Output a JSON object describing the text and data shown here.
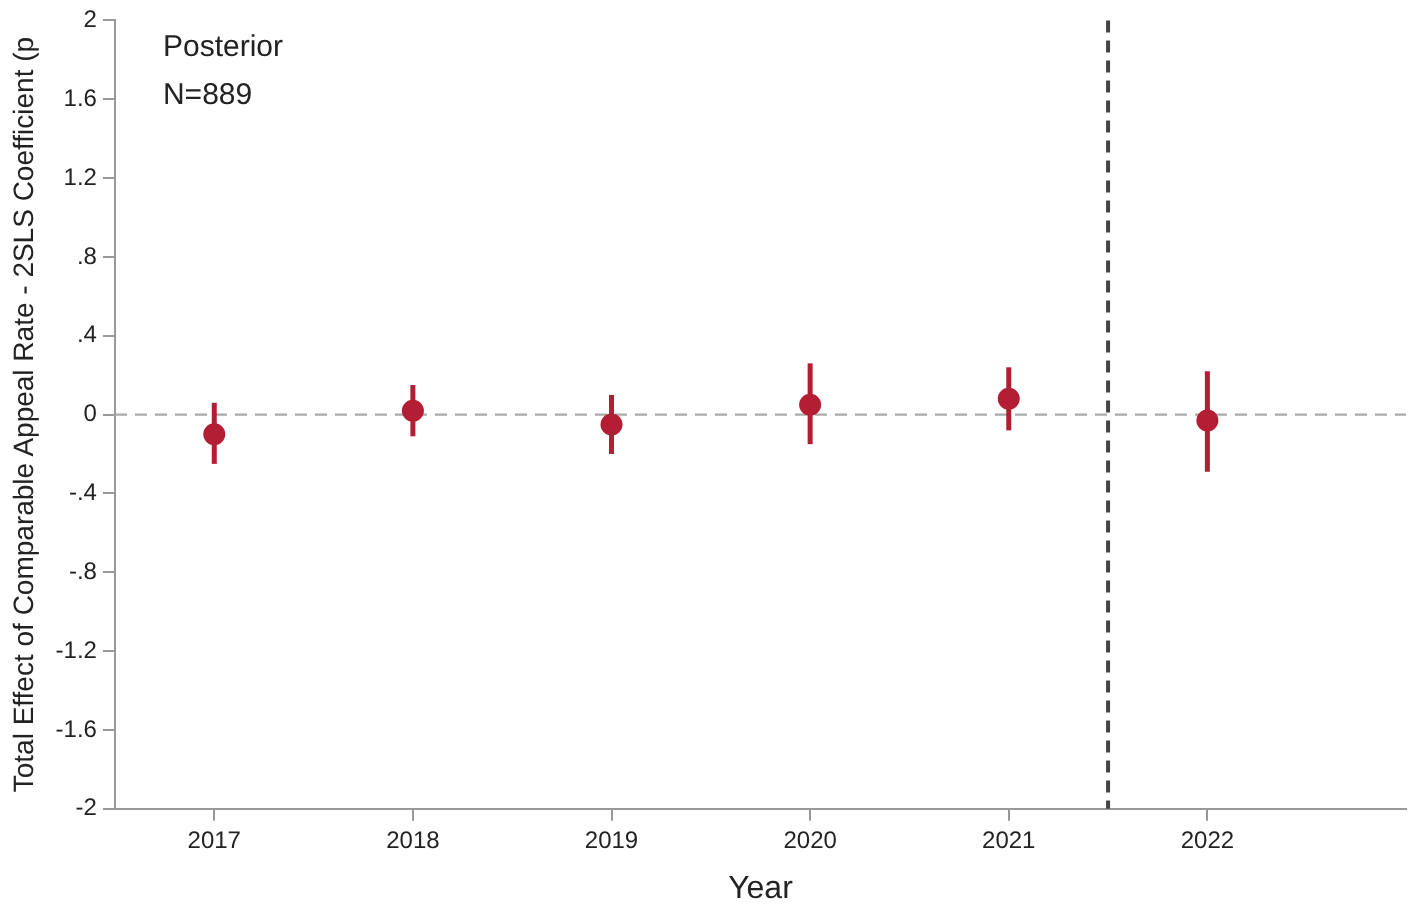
{
  "chart_data": {
    "type": "scatter",
    "xlabel": "Year",
    "ylabel": "Total Effect of Comparable Appeal Rate - 2SLS Coefficient (p",
    "x": [
      2017,
      2018,
      2019,
      2020,
      2021,
      2022
    ],
    "series": [
      {
        "color": "#b41e34",
        "values": [
          -0.1,
          0.02,
          -0.05,
          0.05,
          0.08,
          -0.03
        ],
        "errors": [
          [
            -0.25,
            0.06
          ],
          [
            -0.11,
            0.15
          ],
          [
            -0.2,
            0.1
          ],
          [
            -0.15,
            0.26
          ],
          [
            -0.08,
            0.24
          ],
          [
            -0.29,
            0.22
          ]
        ]
      }
    ],
    "xlim": [
      2016.5,
      2023
    ],
    "xticks": [
      2017,
      2018,
      2019,
      2020,
      2021,
      2022
    ],
    "ylim": [
      -2,
      2
    ],
    "yticks": [
      {
        "value": -2,
        "label": "-2"
      },
      {
        "value": -1.6,
        "label": "-1.6"
      },
      {
        "value": -1.2,
        "label": "-1.2"
      },
      {
        "value": -0.8,
        "label": "-.8"
      },
      {
        "value": -0.4,
        "label": "-.4"
      },
      {
        "value": 0,
        "label": "0"
      },
      {
        "value": 0.4,
        "label": ".4"
      },
      {
        "value": 0.8,
        "label": ".8"
      },
      {
        "value": 1.2,
        "label": "1.2"
      },
      {
        "value": 1.6,
        "label": "1.6"
      },
      {
        "value": 2,
        "label": "2"
      }
    ],
    "ref_lines": [
      {
        "axis": "y",
        "value": 0,
        "color": "#aaaaaa",
        "line_style": "dashed"
      },
      {
        "axis": "x",
        "value": 2021.5,
        "color": "#444444",
        "line_style": "dashed"
      }
    ],
    "annotations": [
      "Posterior",
      "N=889"
    ],
    "marker": "circle",
    "grid": false,
    "legend": false
  }
}
